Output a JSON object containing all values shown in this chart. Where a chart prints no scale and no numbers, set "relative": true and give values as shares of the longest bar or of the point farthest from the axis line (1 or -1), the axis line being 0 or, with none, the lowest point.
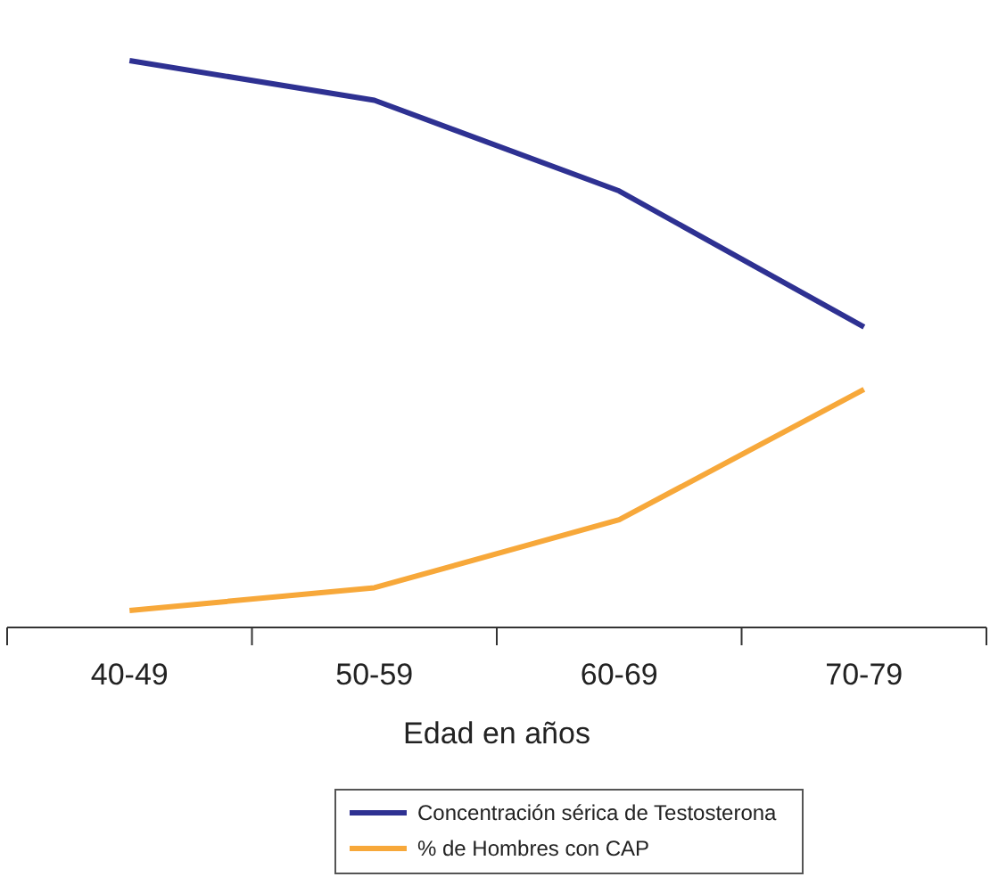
{
  "chart_data": {
    "type": "line",
    "relative": true,
    "xlabel": "Edad en años",
    "categories": [
      "40-49",
      "50-59",
      "60-69",
      "70-79"
    ],
    "legend": "bottom",
    "grid": false,
    "marker": "none",
    "line_style": "solid",
    "series": [
      {
        "name": "Concentración sérica de Testosterona",
        "color": "#2e3192",
        "values": [
          1,
          0.93,
          0.77,
          0.53
        ]
      },
      {
        "name": "% de Hombres con CAP",
        "color": "#f7a83a",
        "values": [
          0.03,
          0.07,
          0.19,
          0.42
        ]
      }
    ]
  }
}
